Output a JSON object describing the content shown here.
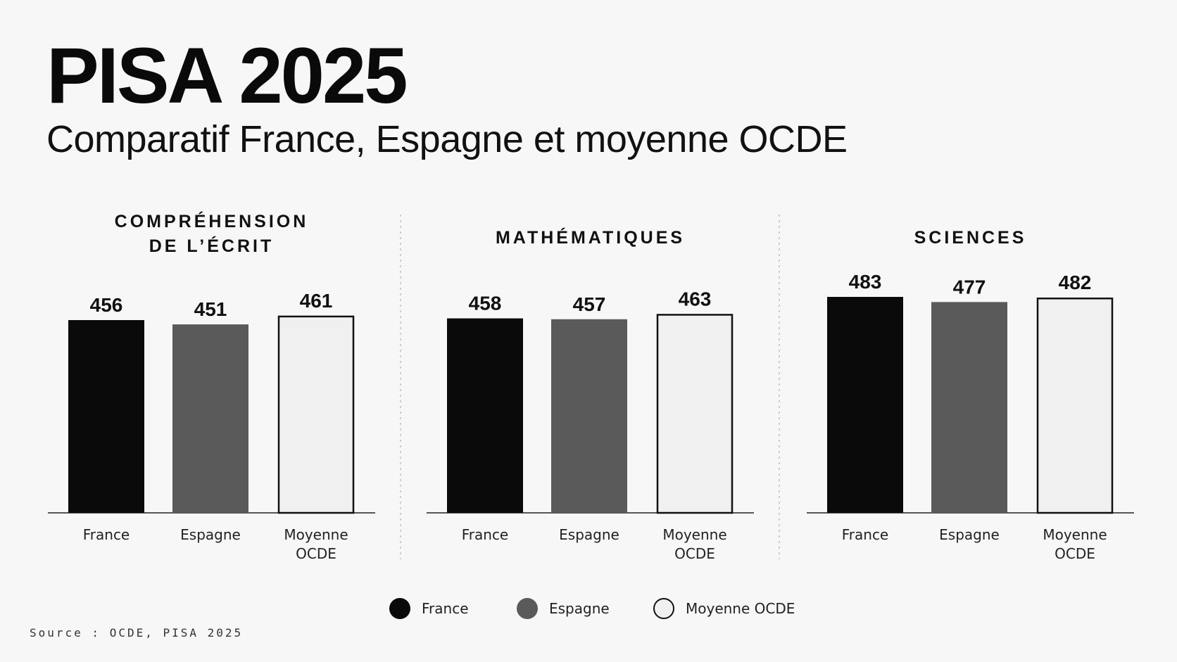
{
  "header": {
    "title": "PISA 2025",
    "subtitle": "Comparatif France, Espagne et moyenne OCDE"
  },
  "colors": {
    "France": "#0a0a0a",
    "Espagne": "#5a5a5a",
    "Moyenne OCDE": "#f0f0f0",
    "outline": "#111111",
    "divider": "#bdbdbd"
  },
  "chart_data": [
    {
      "type": "bar",
      "title_lines": [
        "COMPRÉHENSION",
        "DE L’ÉCRIT"
      ],
      "categories": [
        "France",
        "Espagne",
        "Moyenne OCDE"
      ],
      "category_label_lines": [
        [
          "France"
        ],
        [
          "Espagne"
        ],
        [
          "Moyenne",
          "OCDE"
        ]
      ],
      "values": [
        456,
        451,
        461
      ]
    },
    {
      "type": "bar",
      "title_lines": [
        "MATHÉMATIQUES"
      ],
      "categories": [
        "France",
        "Espagne",
        "Moyenne OCDE"
      ],
      "category_label_lines": [
        [
          "France"
        ],
        [
          "Espagne"
        ],
        [
          "Moyenne",
          "OCDE"
        ]
      ],
      "values": [
        458,
        457,
        463
      ]
    },
    {
      "type": "bar",
      "title_lines": [
        "SCIENCES"
      ],
      "categories": [
        "France",
        "Espagne",
        "Moyenne OCDE"
      ],
      "category_label_lines": [
        [
          "France"
        ],
        [
          "Espagne"
        ],
        [
          "Moyenne",
          "OCDE"
        ]
      ],
      "values": [
        483,
        477,
        482
      ]
    }
  ],
  "legend": {
    "items": [
      {
        "label": "France",
        "swatch": "France"
      },
      {
        "label": "Espagne",
        "swatch": "Espagne"
      },
      {
        "label": "Moyenne OCDE",
        "swatch": "Moyenne OCDE"
      }
    ]
  },
  "footer": {
    "source": "Source : OCDE, PISA 2025"
  }
}
